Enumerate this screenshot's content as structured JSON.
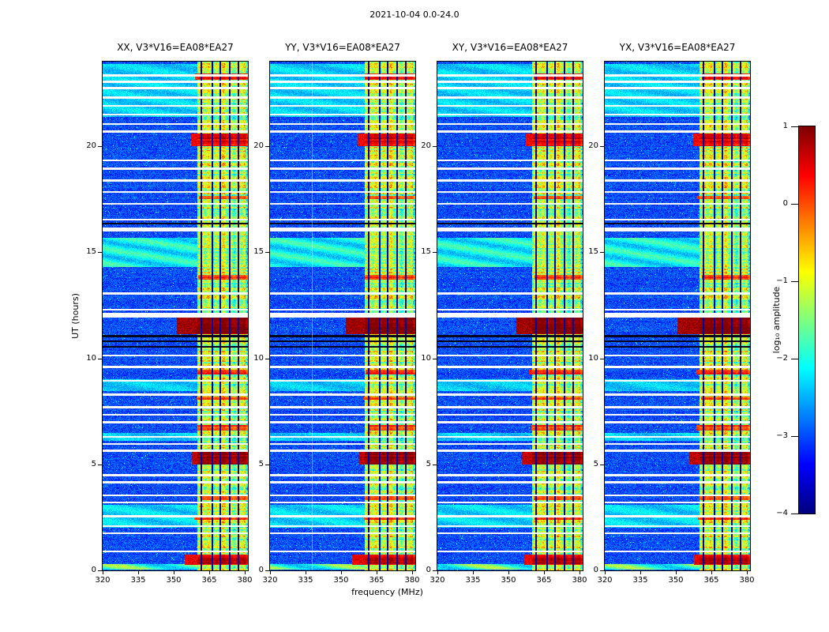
{
  "chart_data": {
    "type": "heatmap",
    "title": "2021-10-04 0.0-24.0",
    "xlabel": "frequency (MHz)",
    "ylabel": "UT (hours)",
    "x_range": [
      320,
      381.3
    ],
    "x_ticks": [
      320,
      335,
      350,
      365,
      380
    ],
    "x_tick_labels": [
      "320",
      "335",
      "350",
      "365",
      "380"
    ],
    "y_range": [
      0,
      24
    ],
    "y_ticks": [
      0,
      5,
      10,
      15,
      20
    ],
    "y_tick_labels": [
      "0",
      "5",
      "10",
      "15",
      "20"
    ],
    "colormap": "jet",
    "panels": [
      {
        "id": "XX",
        "title": "XX, V3*V16=EA08*EA27",
        "seed": 7
      },
      {
        "id": "YY",
        "title": "YY, V3*V16=EA08*EA27",
        "seed": 19,
        "faint_line_mhz": 337.5
      },
      {
        "id": "XY",
        "title": "XY, V3*V16=EA08*EA27",
        "seed": 31
      },
      {
        "id": "YX",
        "title": "YX, V3*V16=EA08*EA27",
        "seed": 43
      }
    ],
    "colorbar": {
      "label": "log₁₀ amplitude",
      "min": -4,
      "max": 1,
      "ticks": [
        "1",
        "0",
        "−1",
        "−2",
        "−3",
        "−4"
      ],
      "tick_values": [
        1,
        0,
        -1,
        -2,
        -3,
        -4
      ]
    },
    "features": {
      "background_level": -3.0,
      "rfi_band": {
        "f_start": 360,
        "f_end": 381.3,
        "level": -1.25,
        "dark_channels_mhz": [
          361.8,
          366.3,
          369.8,
          373.6,
          377.2
        ]
      },
      "dropouts": [
        {
          "t": 0.9,
          "w": 0.1
        },
        {
          "t": 1.75,
          "w": 0.1
        },
        {
          "t": 2.1,
          "w": 0.08
        },
        {
          "t": 2.55,
          "w": 0.1
        },
        {
          "t": 3.2,
          "w": 0.1
        },
        {
          "t": 3.55,
          "w": 0.08
        },
        {
          "t": 4.15,
          "w": 0.1
        },
        {
          "t": 4.5,
          "w": 0.1
        },
        {
          "t": 5.65,
          "w": 0.1
        },
        {
          "t": 5.95,
          "w": 0.08
        },
        {
          "t": 6.3,
          "w": 0.08
        },
        {
          "t": 7.0,
          "w": 0.1
        },
        {
          "t": 7.35,
          "w": 0.08
        },
        {
          "t": 7.7,
          "w": 0.1
        },
        {
          "t": 8.3,
          "w": 0.1
        },
        {
          "t": 8.95,
          "w": 0.1
        },
        {
          "t": 9.6,
          "w": 0.1
        },
        {
          "t": 10.15,
          "w": 0.08
        },
        {
          "t": 12.05,
          "w": 0.22
        },
        {
          "t": 12.3,
          "w": 0.08
        },
        {
          "t": 13.05,
          "w": 0.1
        },
        {
          "t": 16.08,
          "w": 0.16
        },
        {
          "t": 16.55,
          "w": 0.1
        },
        {
          "t": 17.3,
          "w": 0.08
        },
        {
          "t": 17.85,
          "w": 0.1
        },
        {
          "t": 18.4,
          "w": 0.1
        },
        {
          "t": 18.95,
          "w": 0.1
        },
        {
          "t": 19.35,
          "w": 0.08
        },
        {
          "t": 20.7,
          "w": 0.1
        },
        {
          "t": 21.05,
          "w": 0.08
        },
        {
          "t": 21.5,
          "w": 0.1
        },
        {
          "t": 21.9,
          "w": 0.08
        },
        {
          "t": 22.3,
          "w": 0.1
        },
        {
          "t": 22.75,
          "w": 0.08
        },
        {
          "t": 23.05,
          "w": 0.08
        },
        {
          "t": 23.35,
          "w": 0.08
        }
      ],
      "dark_line_times": [
        10.55,
        10.8,
        11.05,
        16.35
      ],
      "bright_events": [
        {
          "t0": 0.25,
          "t1": 0.75,
          "level": 0.55,
          "f_min": 356
        },
        {
          "t0": 2.4,
          "t1": 2.6,
          "level": 0.0,
          "f_min": 360
        },
        {
          "t0": 3.3,
          "t1": 3.5,
          "level": 0.15,
          "f_min": 360
        },
        {
          "t0": 5.0,
          "t1": 5.6,
          "level": 0.8,
          "f_min": 357
        },
        {
          "t0": 6.6,
          "t1": 6.85,
          "level": 0.1,
          "f_min": 360
        },
        {
          "t0": 8.05,
          "t1": 8.2,
          "level": 0.1,
          "f_min": 360
        },
        {
          "t0": 9.25,
          "t1": 9.45,
          "level": 0.25,
          "f_min": 360
        },
        {
          "t0": 11.15,
          "t1": 11.95,
          "level": 1.0,
          "f_min": 352
        },
        {
          "t0": 13.7,
          "t1": 13.95,
          "level": 0.15,
          "f_min": 360
        },
        {
          "t0": 17.5,
          "t1": 17.65,
          "level": 0.1,
          "f_min": 360
        },
        {
          "t0": 20.0,
          "t1": 20.6,
          "level": 0.5,
          "f_min": 358
        },
        {
          "t0": 23.15,
          "t1": 23.45,
          "level": 0.25,
          "f_min": 360
        }
      ],
      "broadband_streaks": [
        {
          "t0": 0.05,
          "t1": 0.3,
          "boost": 1.4
        },
        {
          "t0": 2.0,
          "t1": 3.1,
          "boost": 0.45
        },
        {
          "t0": 6.1,
          "t1": 6.5,
          "boost": 0.35
        },
        {
          "t0": 8.45,
          "t1": 9.0,
          "boost": 0.3
        },
        {
          "t0": 14.3,
          "t1": 15.7,
          "boost": 0.85
        },
        {
          "t0": 21.4,
          "t1": 23.9,
          "boost": 0.4
        }
      ]
    }
  }
}
